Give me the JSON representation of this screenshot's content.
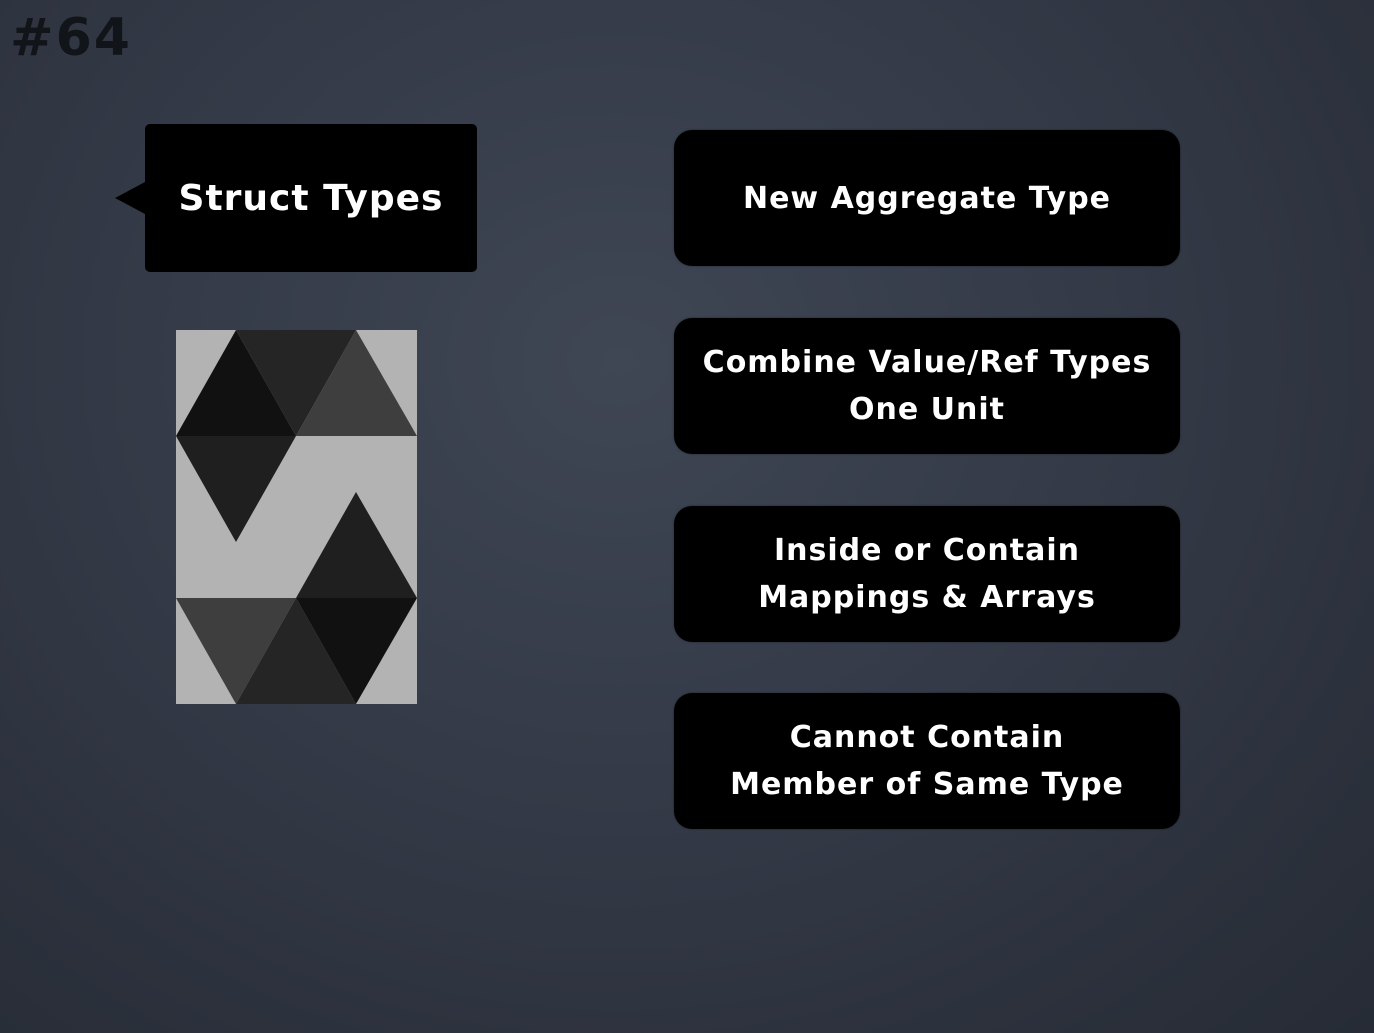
{
  "slide": {
    "number": "#64",
    "title": "Struct Types"
  },
  "logo": {
    "icon": "solidity-logo-icon",
    "background": "#b3b3b3",
    "colors": [
      "#111111",
      "#1f1f1f",
      "#3c3c3c"
    ]
  },
  "cards": [
    {
      "lines": [
        "New Aggregate Type"
      ]
    },
    {
      "lines": [
        "Combine Value/Ref Types",
        "One Unit"
      ]
    },
    {
      "lines": [
        "Inside or Contain",
        "Mappings & Arrays"
      ]
    },
    {
      "lines": [
        "Cannot Contain",
        "Member of Same Type"
      ]
    }
  ]
}
